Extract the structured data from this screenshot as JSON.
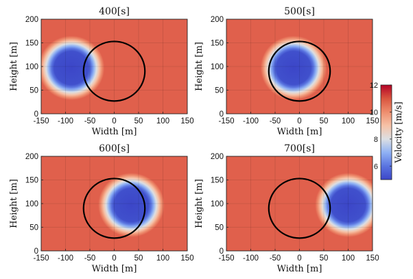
{
  "chart_data": [
    {
      "type": "heatmap",
      "title": "400[s]",
      "xlabel": "Width [m]",
      "ylabel": "Height [m]",
      "xlim": [
        -150,
        150
      ],
      "ylim": [
        0,
        200
      ],
      "xticks": [
        "-150",
        "-100",
        "-50",
        "0",
        "50",
        "100",
        "150"
      ],
      "yticks": [
        "0",
        "50",
        "100",
        "150",
        "200"
      ],
      "grid": true,
      "low_velocity_region": {
        "center_x": -88,
        "center_y": 97,
        "core_radius": 40,
        "outer_radius": 68
      },
      "rotor_circle": {
        "center_x": 0,
        "center_y": 90,
        "radius": 63
      }
    },
    {
      "type": "heatmap",
      "title": "500[s]",
      "xlabel": "Width [m]",
      "ylabel": "Height [m]",
      "xlim": [
        -150,
        150
      ],
      "ylim": [
        0,
        200
      ],
      "xticks": [
        "-150",
        "-100",
        "-50",
        "0",
        "50",
        "100",
        "150"
      ],
      "yticks": [
        "0",
        "50",
        "100",
        "150",
        "200"
      ],
      "grid": true,
      "low_velocity_region": {
        "center_x": -12,
        "center_y": 97,
        "core_radius": 40,
        "outer_radius": 68
      },
      "rotor_circle": {
        "center_x": 0,
        "center_y": 90,
        "radius": 63
      }
    },
    {
      "type": "heatmap",
      "title": "600[s]",
      "xlabel": "Width [m]",
      "ylabel": "Height [m]",
      "xlim": [
        -150,
        150
      ],
      "ylim": [
        0,
        200
      ],
      "xticks": [
        "-150",
        "-100",
        "-50",
        "0",
        "50",
        "100",
        "150"
      ],
      "yticks": [
        "0",
        "50",
        "100",
        "150",
        "200"
      ],
      "grid": true,
      "low_velocity_region": {
        "center_x": 35,
        "center_y": 97,
        "core_radius": 40,
        "outer_radius": 68
      },
      "rotor_circle": {
        "center_x": 0,
        "center_y": 90,
        "radius": 63
      }
    },
    {
      "type": "heatmap",
      "title": "700[s]",
      "xlabel": "Width [m]",
      "ylabel": "Height [m]",
      "xlim": [
        -150,
        150
      ],
      "ylim": [
        0,
        200
      ],
      "xticks": [
        "-150",
        "-100",
        "-50",
        "0",
        "50",
        "100",
        "150"
      ],
      "yticks": [
        "0",
        "50",
        "100",
        "150",
        "200"
      ],
      "grid": true,
      "low_velocity_region": {
        "center_x": 100,
        "center_y": 97,
        "core_radius": 40,
        "outer_radius": 68
      },
      "rotor_circle": {
        "center_x": 0,
        "center_y": 90,
        "radius": 63
      }
    }
  ],
  "colorbar": {
    "label": "Velocity [m/s]",
    "range": [
      5,
      12
    ],
    "ticks": [
      "6",
      "8",
      "10",
      "12"
    ],
    "tick_values": [
      6,
      8,
      10,
      12
    ],
    "colors": [
      "#3c46c8",
      "#5a74e0",
      "#8fb1f4",
      "#dcdfe3",
      "#f6c2a7",
      "#ee8e6e",
      "#d9553f",
      "#b40426"
    ],
    "background_color": "#e0604c"
  }
}
